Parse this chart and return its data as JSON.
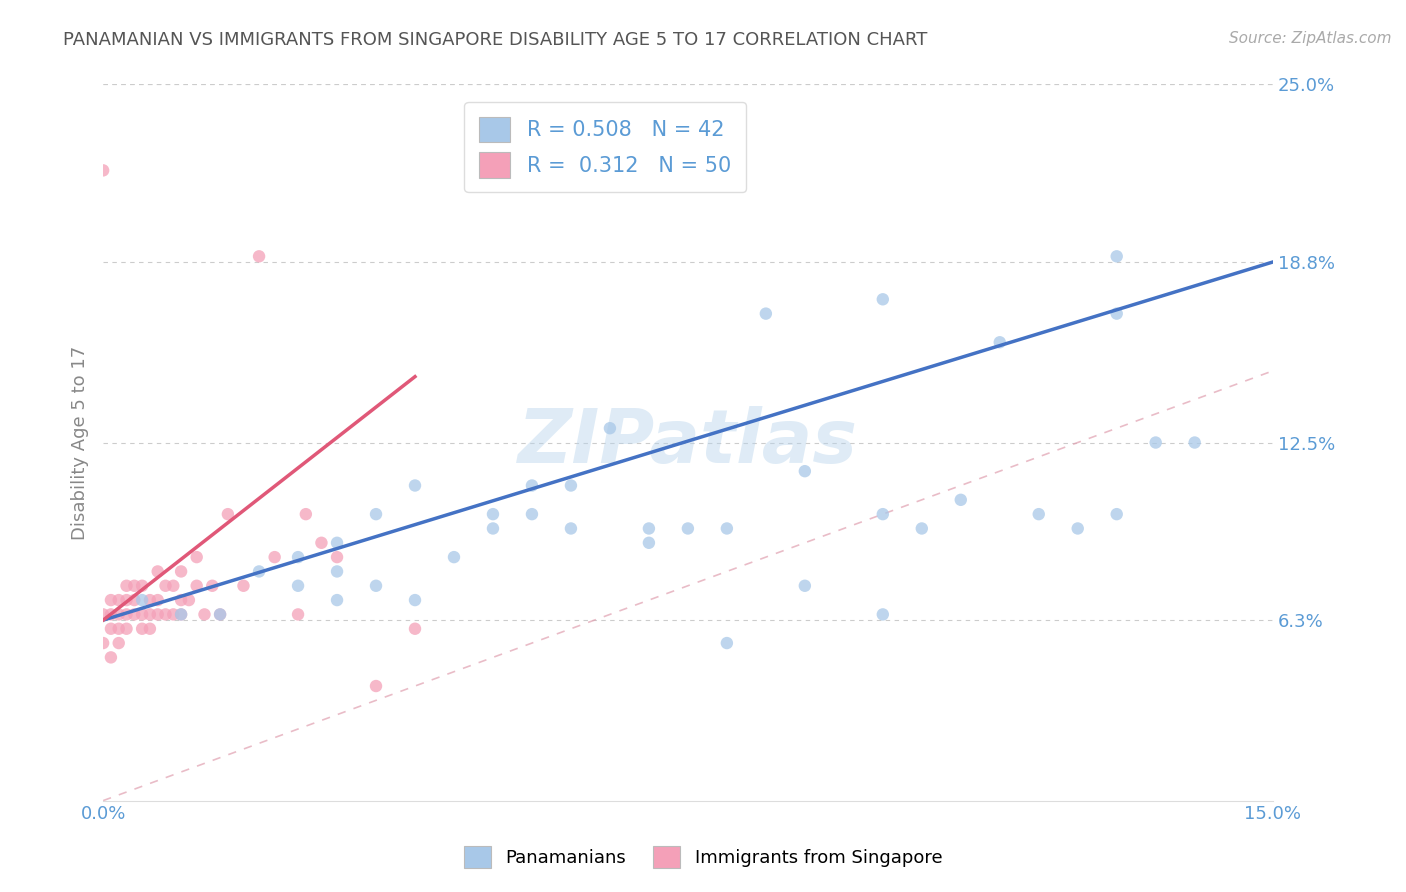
{
  "title": "PANAMANIAN VS IMMIGRANTS FROM SINGAPORE DISABILITY AGE 5 TO 17 CORRELATION CHART",
  "source": "Source: ZipAtlas.com",
  "ylabel": "Disability Age 5 to 17",
  "xlim": [
    0.0,
    0.15
  ],
  "ylim": [
    0.0,
    0.25
  ],
  "ytick_labels_right": [
    "25.0%",
    "18.8%",
    "12.5%",
    "6.3%"
  ],
  "ytick_vals_right": [
    0.25,
    0.188,
    0.125,
    0.063
  ],
  "blue_R": 0.508,
  "blue_N": 42,
  "pink_R": 0.312,
  "pink_N": 50,
  "blue_color": "#a8c8e8",
  "pink_color": "#f4a0b8",
  "blue_line_color": "#4472c4",
  "pink_line_color": "#e05878",
  "grid_color": "#cccccc",
  "title_color": "#555555",
  "axis_label_color": "#5b9bd5",
  "watermark": "ZIPatlas",
  "legend_label_blue": "Panamanians",
  "legend_label_pink": "Immigrants from Singapore",
  "blue_line_x0": 0.0,
  "blue_line_y0": 0.063,
  "blue_line_x1": 0.15,
  "blue_line_y1": 0.188,
  "pink_line_x0": 0.0,
  "pink_line_y0": 0.063,
  "pink_line_x1": 0.04,
  "pink_line_y1": 0.148,
  "blue_scatter_x": [
    0.005,
    0.01,
    0.015,
    0.02,
    0.025,
    0.025,
    0.03,
    0.03,
    0.03,
    0.035,
    0.035,
    0.04,
    0.04,
    0.045,
    0.05,
    0.05,
    0.055,
    0.055,
    0.06,
    0.06,
    0.065,
    0.07,
    0.07,
    0.075,
    0.08,
    0.085,
    0.09,
    0.09,
    0.1,
    0.1,
    0.105,
    0.11,
    0.115,
    0.12,
    0.125,
    0.13,
    0.13,
    0.135,
    0.08,
    0.1,
    0.13,
    0.14
  ],
  "blue_scatter_y": [
    0.07,
    0.065,
    0.065,
    0.08,
    0.085,
    0.075,
    0.07,
    0.08,
    0.09,
    0.075,
    0.1,
    0.07,
    0.11,
    0.085,
    0.1,
    0.095,
    0.1,
    0.11,
    0.095,
    0.11,
    0.13,
    0.09,
    0.095,
    0.095,
    0.095,
    0.17,
    0.075,
    0.115,
    0.065,
    0.1,
    0.095,
    0.105,
    0.16,
    0.1,
    0.095,
    0.1,
    0.17,
    0.125,
    0.055,
    0.175,
    0.19,
    0.125
  ],
  "pink_scatter_x": [
    0.0,
    0.0,
    0.001,
    0.001,
    0.001,
    0.001,
    0.002,
    0.002,
    0.002,
    0.002,
    0.003,
    0.003,
    0.003,
    0.003,
    0.004,
    0.004,
    0.004,
    0.005,
    0.005,
    0.005,
    0.006,
    0.006,
    0.006,
    0.007,
    0.007,
    0.007,
    0.008,
    0.008,
    0.009,
    0.009,
    0.01,
    0.01,
    0.01,
    0.011,
    0.012,
    0.012,
    0.013,
    0.014,
    0.015,
    0.016,
    0.018,
    0.02,
    0.022,
    0.025,
    0.026,
    0.028,
    0.03,
    0.035,
    0.04,
    0.0
  ],
  "pink_scatter_y": [
    0.055,
    0.065,
    0.06,
    0.065,
    0.07,
    0.05,
    0.055,
    0.06,
    0.065,
    0.07,
    0.06,
    0.065,
    0.07,
    0.075,
    0.065,
    0.07,
    0.075,
    0.06,
    0.065,
    0.075,
    0.06,
    0.065,
    0.07,
    0.065,
    0.07,
    0.08,
    0.065,
    0.075,
    0.065,
    0.075,
    0.065,
    0.07,
    0.08,
    0.07,
    0.075,
    0.085,
    0.065,
    0.075,
    0.065,
    0.1,
    0.075,
    0.19,
    0.085,
    0.065,
    0.1,
    0.09,
    0.085,
    0.04,
    0.06,
    0.22
  ]
}
